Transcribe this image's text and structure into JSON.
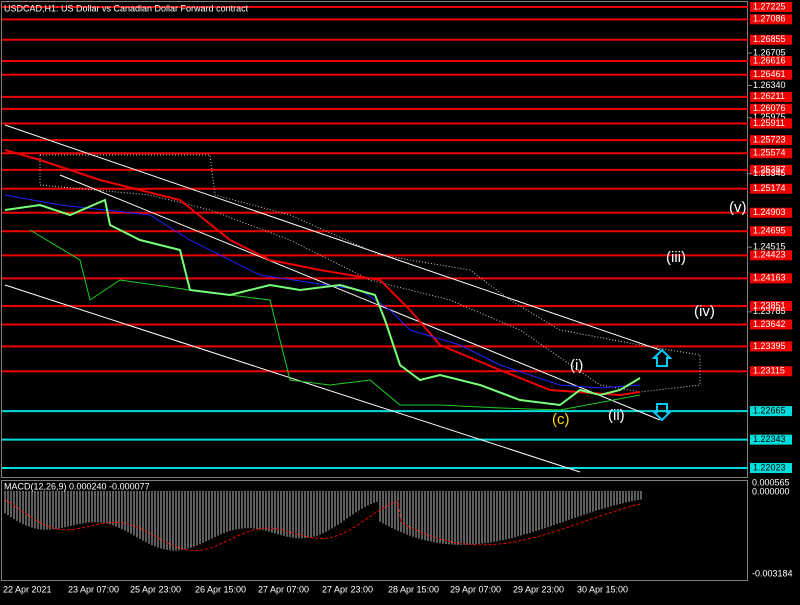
{
  "header": {
    "title": "USDCAD,H1:  US Dollar vs Canadian Dollar Forward contract"
  },
  "price_levels": [
    {
      "label": "1.27225",
      "kind": "red"
    },
    {
      "label": "1.27086",
      "kind": "red"
    },
    {
      "label": "1.26855",
      "kind": "red"
    },
    {
      "label": "1.26705",
      "kind": "plain"
    },
    {
      "label": "1.26616",
      "kind": "red"
    },
    {
      "label": "1.26461",
      "kind": "red"
    },
    {
      "label": "1.26340",
      "kind": "plain"
    },
    {
      "label": "1.26211",
      "kind": "red"
    },
    {
      "label": "1.26076",
      "kind": "red"
    },
    {
      "label": "1.25975",
      "kind": "plain"
    },
    {
      "label": "1.25911",
      "kind": "red"
    },
    {
      "label": "1.25723",
      "kind": "red"
    },
    {
      "label": "1.25574",
      "kind": "red"
    },
    {
      "label": "1.25387",
      "kind": "red"
    },
    {
      "label": "1.25345",
      "kind": "plain"
    },
    {
      "label": "1.25174",
      "kind": "red"
    },
    {
      "label": "1.24903",
      "kind": "red"
    },
    {
      "label": "1.24695",
      "kind": "red"
    },
    {
      "label": "1.24515",
      "kind": "plain"
    },
    {
      "label": "1.24423",
      "kind": "red"
    },
    {
      "label": "1.24163",
      "kind": "red"
    },
    {
      "label": "1.23851",
      "kind": "red"
    },
    {
      "label": "1.23785",
      "kind": "plain"
    },
    {
      "label": "1.23642",
      "kind": "red"
    },
    {
      "label": "1.23395",
      "kind": "red"
    },
    {
      "label": "1.23115",
      "kind": "red"
    },
    {
      "label": "1.22665",
      "kind": "cyan"
    },
    {
      "label": "1.22343",
      "kind": "cyan"
    },
    {
      "label": "1.22023",
      "kind": "cyan"
    }
  ],
  "time_labels": [
    "22 Apr 2021",
    "23 Apr 07:00",
    "25 Apr 23:00",
    "26 Apr 15:00",
    "27 Apr 07:00",
    "27 Apr 23:00",
    "28 Apr 15:00",
    "29 Apr 07:00",
    "29 Apr 23:00",
    "30 Apr 15:00"
  ],
  "waves": [
    {
      "label": "(v)",
      "color": "#ffffff"
    },
    {
      "label": "(iii)",
      "color": "#ffffff"
    },
    {
      "label": "(iv)",
      "color": "#ffffff"
    },
    {
      "label": "(i)",
      "color": "#ffffff"
    },
    {
      "label": "(ii)",
      "color": "#ffffff"
    },
    {
      "label": "(c)",
      "color": "#ffd700"
    }
  ],
  "macd": {
    "label": "MACD(12,26,9) 0.000240 -0.000077",
    "scale_labels": [
      "0.000565",
      "0.000000",
      "-0.003184"
    ]
  }
}
